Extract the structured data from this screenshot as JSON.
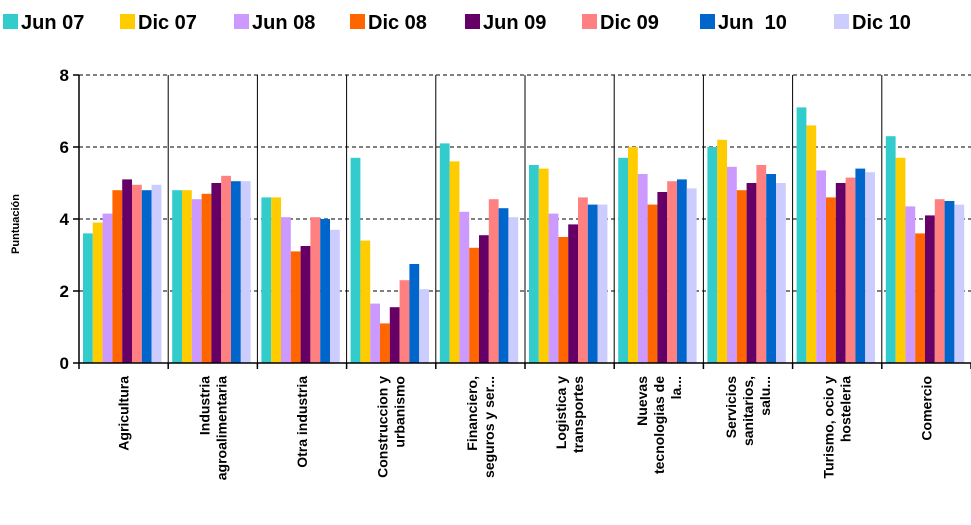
{
  "chart_data": {
    "type": "bar",
    "ylabel": "Puntuación",
    "ylim": [
      0,
      8
    ],
    "yticks": [
      0,
      2,
      4,
      6,
      8
    ],
    "grid": "horizontal dashed",
    "legend_position": "top",
    "categories": [
      [
        "Agricultura"
      ],
      [
        "Industria",
        "agroalimentaria"
      ],
      [
        "Otra industria"
      ],
      [
        "Construccion y",
        "urbanismo"
      ],
      [
        "Financiero,",
        "seguros y ser..."
      ],
      [
        "Logistica y",
        "transportes"
      ],
      [
        "Nuevas",
        "tecnologias de",
        "la..."
      ],
      [
        "Servicios",
        "sanitarios,",
        "salu..."
      ],
      [
        "Turismo, ocio y",
        "hosteleria"
      ],
      [
        "Comercio"
      ]
    ],
    "series": [
      {
        "name": "Jun 07",
        "color": "#33CCCC",
        "values": [
          3.6,
          4.8,
          4.6,
          5.7,
          6.1,
          5.5,
          5.7,
          6.0,
          7.1,
          6.3
        ]
      },
      {
        "name": "Dic 07",
        "color": "#FFCC00",
        "values": [
          3.9,
          4.8,
          4.6,
          3.4,
          5.6,
          5.4,
          6.0,
          6.2,
          6.6,
          5.7
        ]
      },
      {
        "name": "Jun 08",
        "color": "#CC99FF",
        "values": [
          4.15,
          4.55,
          4.05,
          1.65,
          4.2,
          4.15,
          5.25,
          5.45,
          5.35,
          4.35
        ]
      },
      {
        "name": "Dic 08",
        "color": "#FF6600",
        "values": [
          4.8,
          4.7,
          3.1,
          1.1,
          3.2,
          3.5,
          4.4,
          4.8,
          4.6,
          3.6
        ]
      },
      {
        "name": "Jun 09",
        "color": "#660066",
        "values": [
          5.1,
          5.0,
          3.25,
          1.55,
          3.55,
          3.85,
          4.75,
          5.0,
          5.0,
          4.1
        ]
      },
      {
        "name": "Dic 09",
        "color": "#FF8080",
        "values": [
          4.95,
          5.2,
          4.05,
          2.3,
          4.55,
          4.6,
          5.05,
          5.5,
          5.15,
          4.55
        ]
      },
      {
        "name": "Jun  10",
        "color": "#0066CC",
        "values": [
          4.8,
          5.05,
          4.0,
          2.75,
          4.3,
          4.4,
          5.1,
          5.25,
          5.4,
          4.5
        ]
      },
      {
        "name": "Dic 10",
        "color": "#CCCCFF",
        "values": [
          4.95,
          5.05,
          3.7,
          2.05,
          4.05,
          4.4,
          4.85,
          5.0,
          5.3,
          4.4
        ]
      }
    ]
  }
}
